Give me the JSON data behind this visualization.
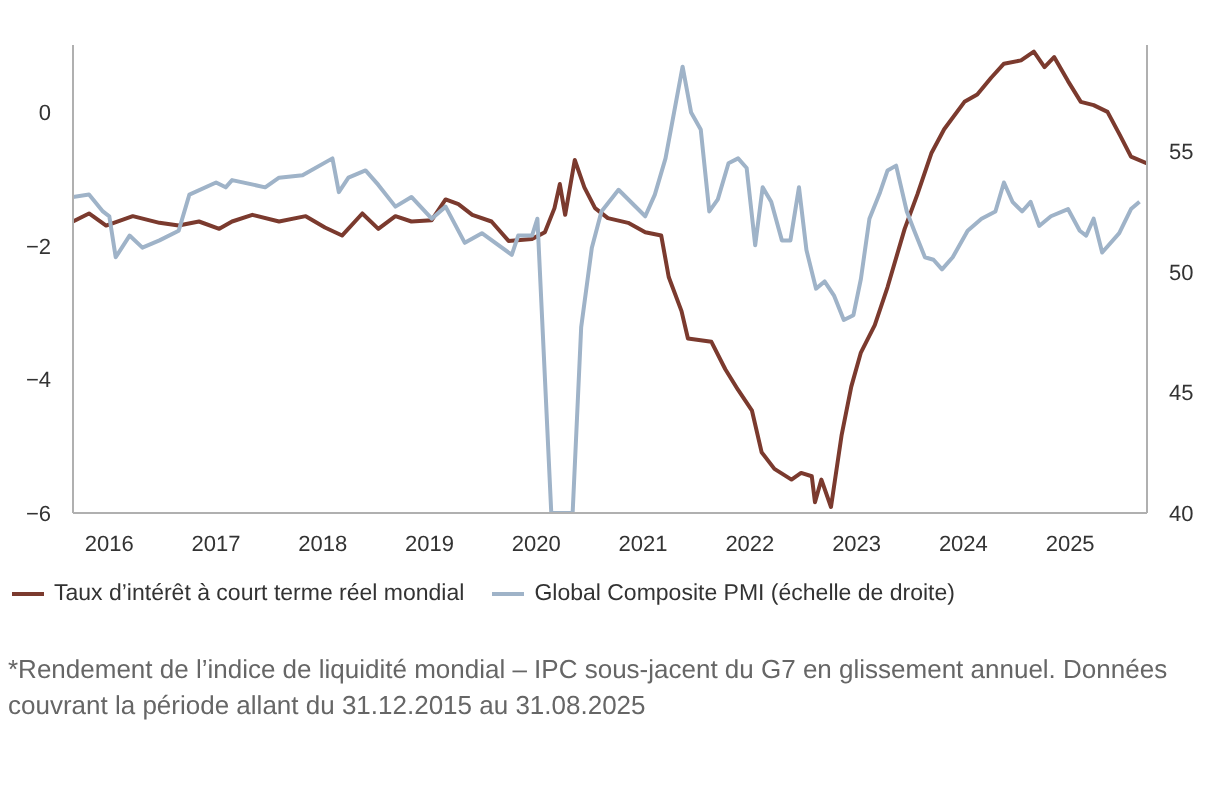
{
  "chart_data": {
    "type": "line",
    "x": [
      2015.66,
      2015.81,
      2015.97,
      2016.22,
      2016.47,
      2016.65,
      2016.84,
      2017.03,
      2017.15,
      2017.34,
      2017.59,
      2017.84,
      2018.02,
      2018.18,
      2018.37,
      2018.52,
      2018.68,
      2018.83,
      2019.02,
      2019.15,
      2019.27,
      2019.4,
      2019.58,
      2019.74,
      2019.96,
      2020.08,
      2020.17,
      2020.22,
      2020.27,
      2020.36,
      2020.45,
      2020.55,
      2020.67,
      2020.86,
      2021.02,
      2021.17,
      2021.24,
      2021.36,
      2021.42,
      2021.64,
      2021.77,
      2021.89,
      2022.02,
      2022.11,
      2022.23,
      2022.39,
      2022.48,
      2022.58,
      2022.61,
      2022.67,
      2022.76,
      2022.86,
      2022.95,
      2023.04,
      2023.17,
      2023.29,
      2023.45,
      2023.57,
      2023.7,
      2023.82,
      2024.01,
      2024.13,
      2024.26,
      2024.38,
      2024.54,
      2024.66,
      2024.76,
      2024.85,
      2024.98,
      2025.1,
      2025.22,
      2025.35,
      2025.47,
      2025.57,
      2025.72
    ],
    "series": [
      {
        "name": "Taux d’intérêt à court terme réel mondial",
        "color": "#7b3a2e",
        "values": [
          -1.64,
          -1.52,
          -1.7,
          -1.56,
          -1.66,
          -1.7,
          -1.64,
          -1.75,
          -1.64,
          -1.54,
          -1.64,
          -1.56,
          -1.73,
          -1.85,
          -1.52,
          -1.75,
          -1.56,
          -1.64,
          -1.62,
          -1.31,
          -1.38,
          -1.54,
          -1.64,
          -1.93,
          -1.9,
          -1.8,
          -1.44,
          -1.08,
          -1.54,
          -0.72,
          -1.13,
          -1.44,
          -1.59,
          -1.66,
          -1.8,
          -1.85,
          -2.47,
          -2.98,
          -3.39,
          -3.44,
          -3.85,
          -4.16,
          -4.47,
          -5.09,
          -5.34,
          -5.5,
          -5.4,
          -5.45,
          -5.84,
          -5.5,
          -5.91,
          -4.83,
          -4.11,
          -3.6,
          -3.19,
          -2.62,
          -1.75,
          -1.23,
          -0.62,
          -0.26,
          0.15,
          0.26,
          0.51,
          0.72,
          0.77,
          0.9,
          0.67,
          0.82,
          0.46,
          0.15,
          0.1,
          0.0,
          -0.36,
          -0.67,
          -0.77
        ]
      },
      {
        "name": "Global Composite PMI (échelle de droite)",
        "color": "#9fb3c8",
        "axis": "y2",
        "x": [
          2015.66,
          2015.81,
          2015.94,
          2016.0,
          2016.06,
          2016.19,
          2016.31,
          2016.47,
          2016.65,
          2016.75,
          2017.0,
          2017.09,
          2017.15,
          2017.46,
          2017.59,
          2017.81,
          2018.09,
          2018.15,
          2018.24,
          2018.4,
          2018.52,
          2018.68,
          2018.83,
          2019.02,
          2019.15,
          2019.33,
          2019.49,
          2019.77,
          2019.83,
          2019.96,
          2020.01,
          2020.14,
          2020.34,
          2020.42,
          2020.52,
          2020.61,
          2020.77,
          2021.02,
          2021.11,
          2021.21,
          2021.37,
          2021.45,
          2021.54,
          2021.62,
          2021.7,
          2021.8,
          2021.89,
          2021.97,
          2022.05,
          2022.12,
          2022.2,
          2022.3,
          2022.38,
          2022.46,
          2022.53,
          2022.62,
          2022.7,
          2022.79,
          2022.88,
          2022.97,
          2023.04,
          2023.12,
          2023.22,
          2023.29,
          2023.37,
          2023.47,
          2023.54,
          2023.64,
          2023.72,
          2023.8,
          2023.9,
          2024.04,
          2024.17,
          2024.3,
          2024.38,
          2024.46,
          2024.55,
          2024.63,
          2024.71,
          2024.82,
          2024.98,
          2025.09,
          2025.15,
          2025.22,
          2025.3,
          2025.46,
          2025.57,
          2025.65
        ],
        "values": [
          53.1,
          53.2,
          52.5,
          52.3,
          50.6,
          51.5,
          51.0,
          51.3,
          51.7,
          53.2,
          53.7,
          53.5,
          53.8,
          53.5,
          53.9,
          54.0,
          54.7,
          53.3,
          53.9,
          54.2,
          53.6,
          52.7,
          53.1,
          52.2,
          52.7,
          51.2,
          51.6,
          50.7,
          51.5,
          51.5,
          52.2,
          40,
          40,
          47.7,
          51.0,
          52.5,
          53.4,
          52.3,
          53.2,
          54.7,
          58.5,
          56.6,
          55.9,
          52.5,
          53.0,
          54.5,
          54.7,
          54.3,
          51.1,
          53.5,
          52.9,
          51.3,
          51.3,
          53.5,
          50.9,
          49.3,
          49.6,
          49.0,
          48.0,
          48.2,
          49.7,
          52.2,
          53.3,
          54.2,
          54.4,
          52.5,
          51.7,
          50.6,
          50.5,
          50.1,
          50.6,
          51.7,
          52.2,
          52.5,
          53.7,
          52.9,
          52.5,
          52.9,
          51.9,
          52.3,
          52.6,
          51.7,
          51.5,
          52.2,
          50.8,
          51.6,
          52.6,
          52.9
        ]
      }
    ],
    "xlim": [
      2015.66,
      2025.72
    ],
    "xticks": [
      2016,
      2017,
      2018,
      2019,
      2020,
      2021,
      2022,
      2023,
      2024,
      2025
    ],
    "ylim": [
      -6,
      1
    ],
    "yticks": [
      -6,
      -4,
      -2,
      0
    ],
    "y2lim": [
      40,
      59.4
    ],
    "y2ticks": [
      40,
      45,
      50,
      55
    ],
    "grid": false,
    "legend": "bottom",
    "line_style": "solid",
    "annotations": [
      "*Rendement de l’indice de liquidité mondial – IPC sous-jacent du G7 en glissement annuel. Données couvrant la période allant du 31.12.2015 au 31.08.2025"
    ]
  }
}
